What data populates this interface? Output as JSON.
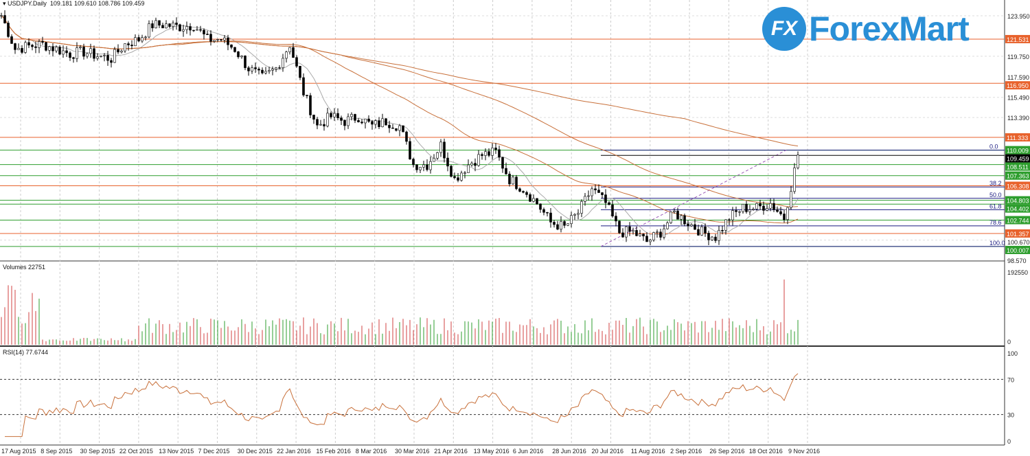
{
  "header": {
    "symbol": "USDJPY.Daily",
    "ohlc": "109.181 109.610 108.786 109.459"
  },
  "logo": {
    "mark": "FX",
    "name": "ForexMart",
    "color": "#2a8fd6"
  },
  "chart_data": {
    "type": "candlestick",
    "title": "USDJPY.Daily",
    "price_axis": {
      "range": [
        98.57,
        125.4
      ],
      "ticks": [
        "123.950",
        "119.750",
        "117.590",
        "115.490",
        "113.390",
        "100.670",
        "98.570"
      ]
    },
    "weekly_closes_approx": [
      124,
      120.5,
      120.8,
      121,
      120.5,
      120,
      120.2,
      119.8,
      119.5,
      121,
      121.5,
      123,
      123,
      122.8,
      123,
      121.5,
      121.5,
      120.5,
      118.5,
      117.5,
      118.5,
      121,
      116,
      112.5,
      113.5,
      113,
      113.5,
      112.5,
      113,
      112.5,
      108.5,
      108.5,
      110.5,
      107,
      108.5,
      109.5,
      109.8,
      107,
      106,
      104.5,
      102.5,
      102,
      103.5,
      106,
      104.5,
      101.5,
      101.5,
      100.5,
      101.5,
      103.5,
      102.5,
      101.5,
      101,
      103,
      104,
      104,
      104.5,
      103,
      109.5
    ],
    "horizontal_levels": [
      {
        "price": 121.531,
        "label": "121.531",
        "color": "#e8622c"
      },
      {
        "price": 116.95,
        "label": "116.950",
        "color": "#e8622c"
      },
      {
        "price": 111.333,
        "label": "111.333",
        "color": "#e8622c"
      },
      {
        "price": 110.009,
        "label": "110.009",
        "color": "#2e9e2e"
      },
      {
        "price": 108.511,
        "label": "108.511",
        "color": "#2e9e2e"
      },
      {
        "price": 107.363,
        "label": "107.363",
        "color": "#2e9e2e"
      },
      {
        "price": 106.308,
        "label": "106.308",
        "color": "#e8622c"
      },
      {
        "price": 104.803,
        "label": "104.803",
        "color": "#2e9e2e"
      },
      {
        "price": 104.402,
        "label": "104.402",
        "color": "#2e9e2e"
      },
      {
        "price": 102.744,
        "label": "102.744",
        "color": "#2e9e2e"
      },
      {
        "price": 101.357,
        "label": "101.357",
        "color": "#e8622c"
      },
      {
        "price": 100.007,
        "label": "100.007",
        "color": "#2e9e2e"
      }
    ],
    "bid": {
      "price": 109.459,
      "label": "109.459",
      "color": "#000000"
    },
    "fibonacci": {
      "high": 110.009,
      "low": 100.007,
      "levels": [
        {
          "label": "0.0",
          "ratio": 0
        },
        {
          "label": "38.2",
          "ratio": 0.382
        },
        {
          "label": "50.0",
          "ratio": 0.5
        },
        {
          "label": "61.8",
          "ratio": 0.618
        },
        {
          "label": "78.6",
          "ratio": 0.786
        },
        {
          "label": "100.0",
          "ratio": 1
        }
      ]
    },
    "volumes": {
      "label": "Volumes 22751",
      "max_label": "192550",
      "min_label": "0"
    },
    "rsi": {
      "label": "RSI(14) 77.6744",
      "ticks": [
        "100",
        "70",
        "30",
        "0"
      ],
      "levels": [
        70,
        30
      ]
    },
    "dates": [
      "17 Aug 2015",
      "8 Sep 2015",
      "30 Sep 2015",
      "22 Oct 2015",
      "13 Nov 2015",
      "7 Dec 2015",
      "30 Dec 2015",
      "22 Jan 2016",
      "15 Feb 2016",
      "8 Mar 2016",
      "30 Mar 2016",
      "21 Apr 2016",
      "13 May 2016",
      "6 Jun 2016",
      "28 Jun 2016",
      "20 Jul 2016",
      "11 Aug 2016",
      "2 Sep 2016",
      "26 Sep 2016",
      "18 Oct 2016",
      "9 Nov 2016"
    ]
  }
}
